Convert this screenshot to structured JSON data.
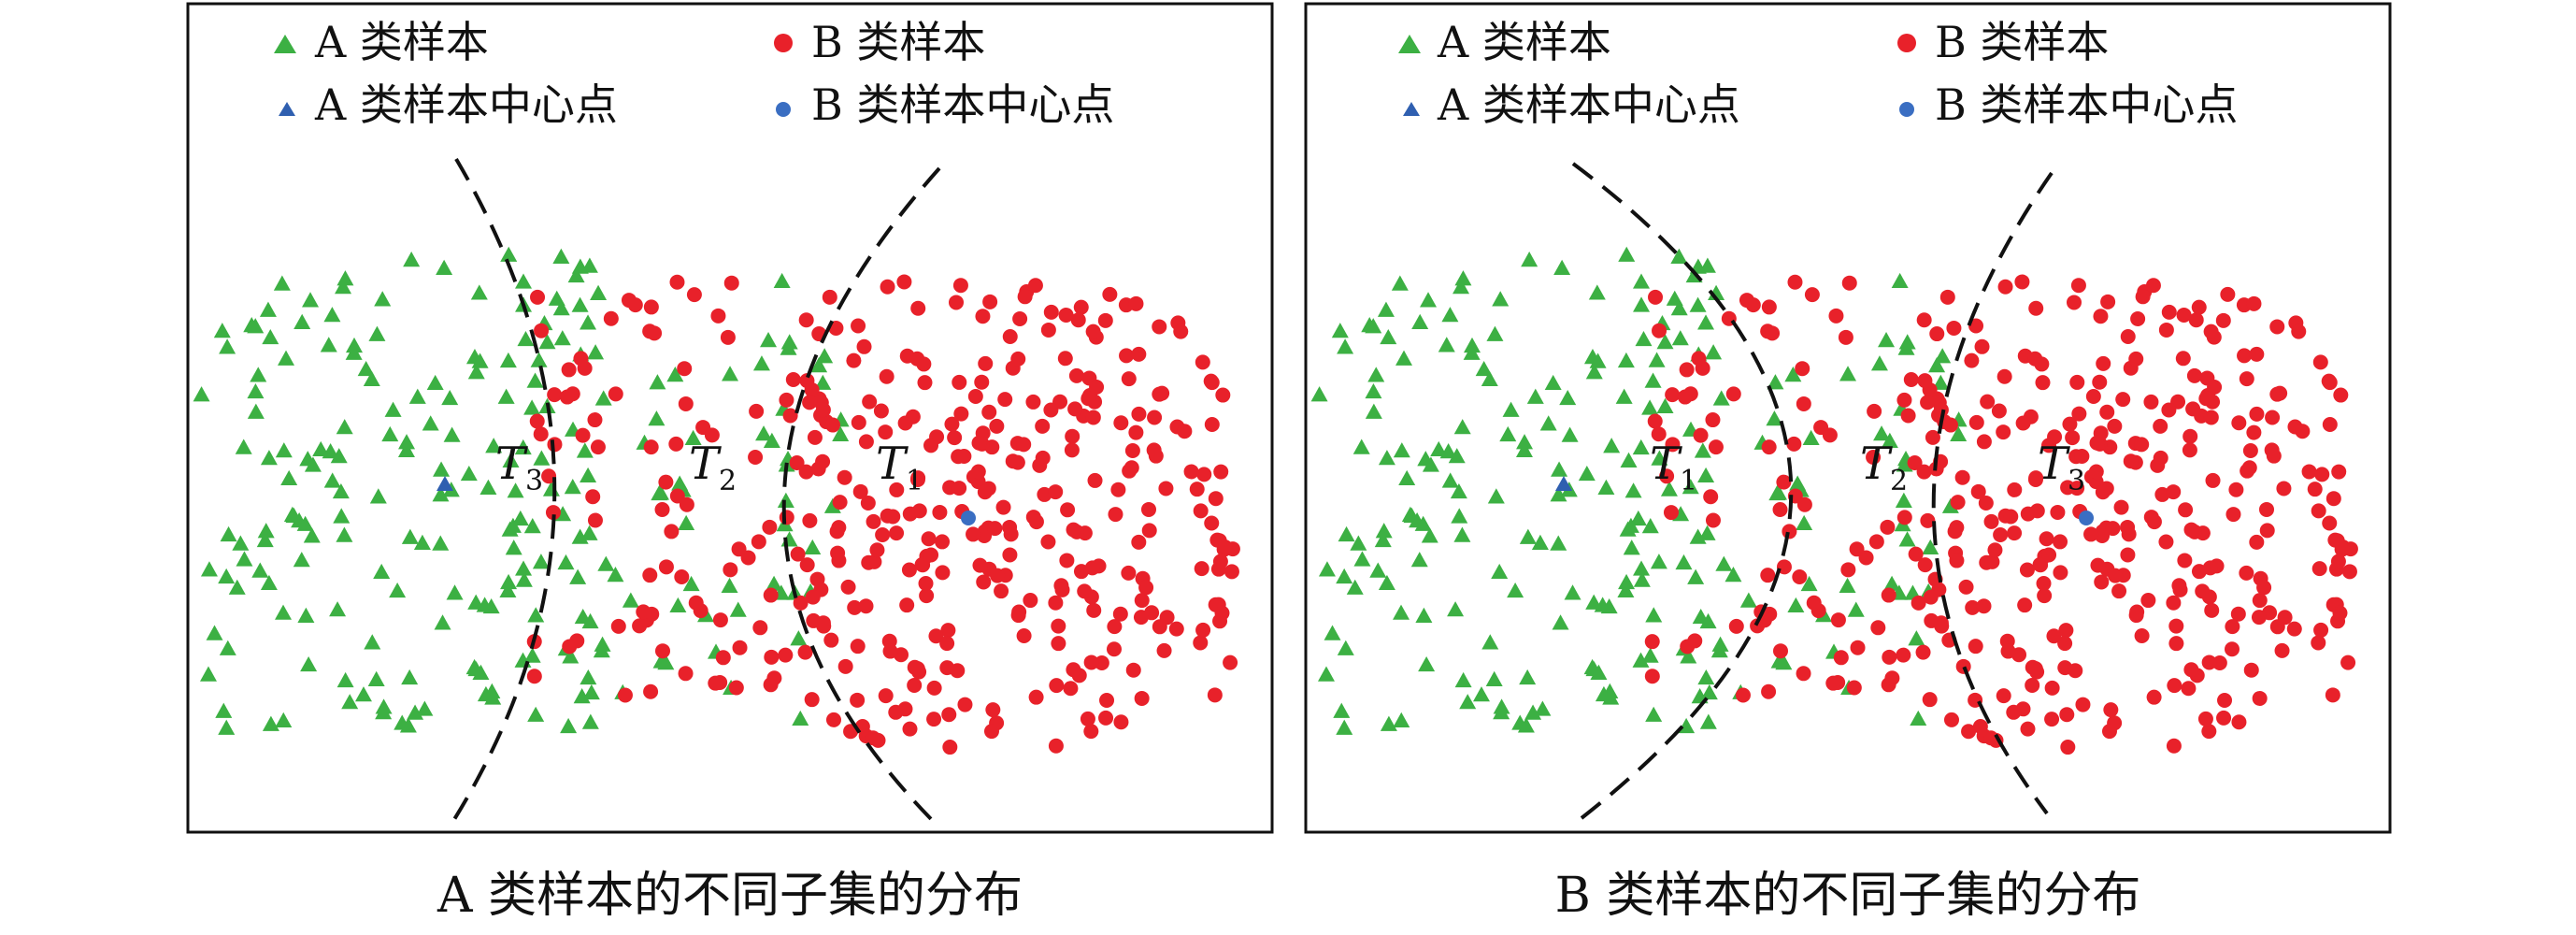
{
  "colors": {
    "a_sample": "#3cb043",
    "b_sample": "#e8212a",
    "a_center": "#2f5fb0",
    "b_center": "#3a6ec2",
    "frame": "#111111",
    "boundary": "#111111"
  },
  "legend": {
    "a_sample": "A 类样本",
    "b_sample": "B 类样本",
    "a_center": "A 类样本中心点",
    "b_center": "B 类样本中心点"
  },
  "panels": [
    {
      "caption": "A 类样本的不同子集的分布",
      "subset_labels": [
        {
          "letter": "T",
          "sub": "3"
        },
        {
          "letter": "T",
          "sub": "2"
        },
        {
          "letter": "T",
          "sub": "1"
        }
      ],
      "a_center_marker": "triangle",
      "b_center_marker": "circle"
    },
    {
      "caption": "B 类样本的不同子集的分布",
      "subset_labels": [
        {
          "letter": "T",
          "sub": "1"
        },
        {
          "letter": "T",
          "sub": "2"
        },
        {
          "letter": "T",
          "sub": "3"
        }
      ],
      "a_center_marker": "triangle",
      "b_center_marker": "circle"
    }
  ]
}
